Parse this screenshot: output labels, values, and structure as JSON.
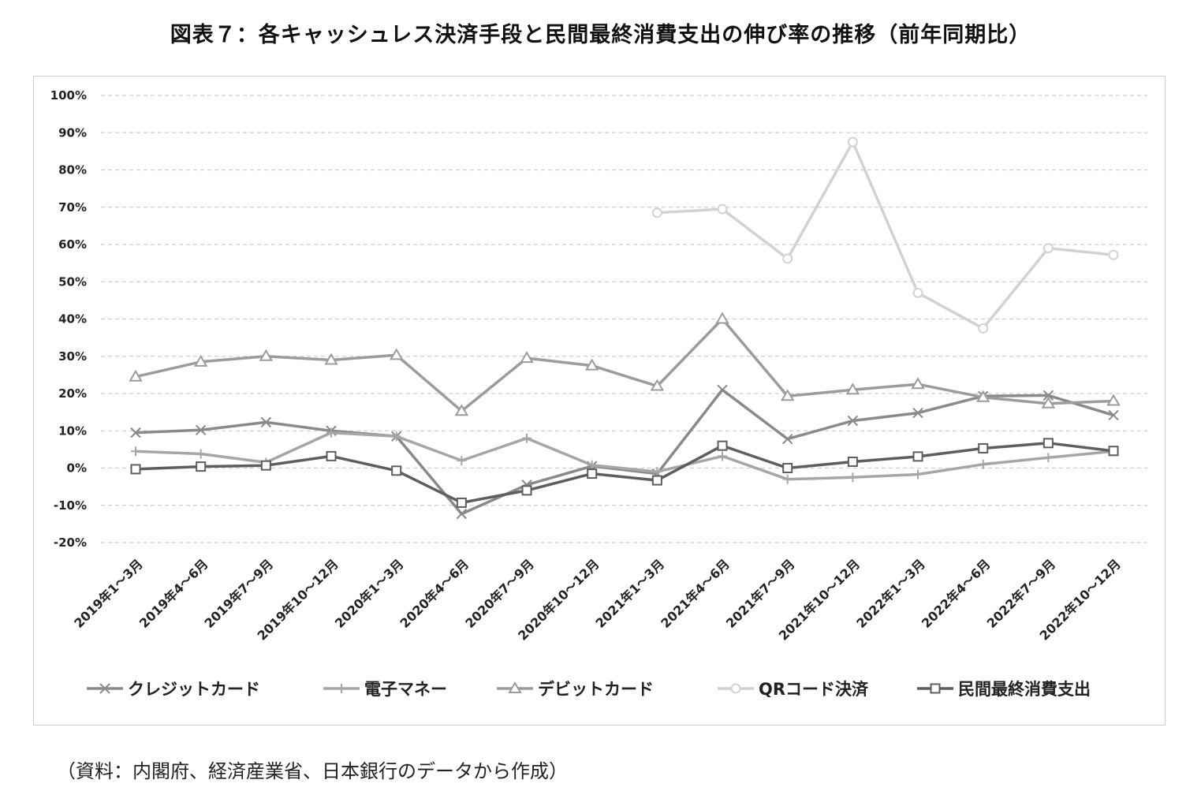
{
  "title": "図表７：各キャッシュレス決済手段と民間最終消費支出の伸び率の推移（前年同期比）",
  "source": "（資料：内閣府、経済産業省、日本銀行のデータから作成）",
  "chart_data": {
    "type": "line",
    "ylim": [
      -20,
      100
    ],
    "y_ticks": [
      "100%",
      "90%",
      "80%",
      "70%",
      "60%",
      "50%",
      "40%",
      "30%",
      "20%",
      "10%",
      "0%",
      "-10%",
      "-20%"
    ],
    "grid": "horizontal dashed",
    "legend_position": "bottom",
    "categories": [
      "2019年1～3月",
      "2019年4～6月",
      "2019年7～9月",
      "2019年10～12月",
      "2020年1～3月",
      "2020年4～6月",
      "2020年7～9月",
      "2020年10～12月",
      "2021年1～3月",
      "2021年4～6月",
      "2021年7～9月",
      "2021年10～12月",
      "2022年1～3月",
      "2022年4～6月",
      "2022年7～9月",
      "2022年10～12月"
    ],
    "series": [
      {
        "name": "クレジットカード",
        "marker": "x",
        "color": "#8a8a8a",
        "values": [
          9.5,
          10.2,
          12.3,
          10.0,
          8.5,
          -12.3,
          -4.5,
          0.5,
          -1.5,
          21.0,
          7.8,
          12.7,
          14.8,
          19.3,
          19.5,
          14.2
        ]
      },
      {
        "name": "電子マネー",
        "marker": "plus",
        "color": "#a6a6a6",
        "values": [
          4.5,
          3.8,
          1.5,
          9.5,
          8.5,
          2.0,
          8.0,
          0.8,
          -1.0,
          3.2,
          -3.0,
          -2.5,
          -1.7,
          1.0,
          2.8,
          4.5
        ]
      },
      {
        "name": "デビットカード",
        "marker": "triangle",
        "color": "#9c9c9c",
        "values": [
          24.5,
          28.5,
          30.0,
          29.0,
          30.3,
          15.3,
          29.5,
          27.5,
          22.0,
          40.0,
          19.3,
          21.0,
          22.5,
          19.0,
          17.3,
          18.0
        ]
      },
      {
        "name": "QRコード決済",
        "marker": "circle",
        "color": "#d2d2d2",
        "values": [
          null,
          null,
          null,
          null,
          null,
          null,
          null,
          null,
          68.5,
          69.5,
          56.2,
          87.5,
          47.0,
          37.5,
          59.0,
          57.2
        ]
      },
      {
        "name": "民間最終消費支出",
        "marker": "square",
        "color": "#5e5e5e",
        "values": [
          -0.3,
          0.4,
          0.7,
          3.2,
          -0.7,
          -9.3,
          -6.0,
          -1.5,
          -3.3,
          6.0,
          0.0,
          1.7,
          3.1,
          5.3,
          6.7,
          4.6
        ]
      }
    ]
  }
}
